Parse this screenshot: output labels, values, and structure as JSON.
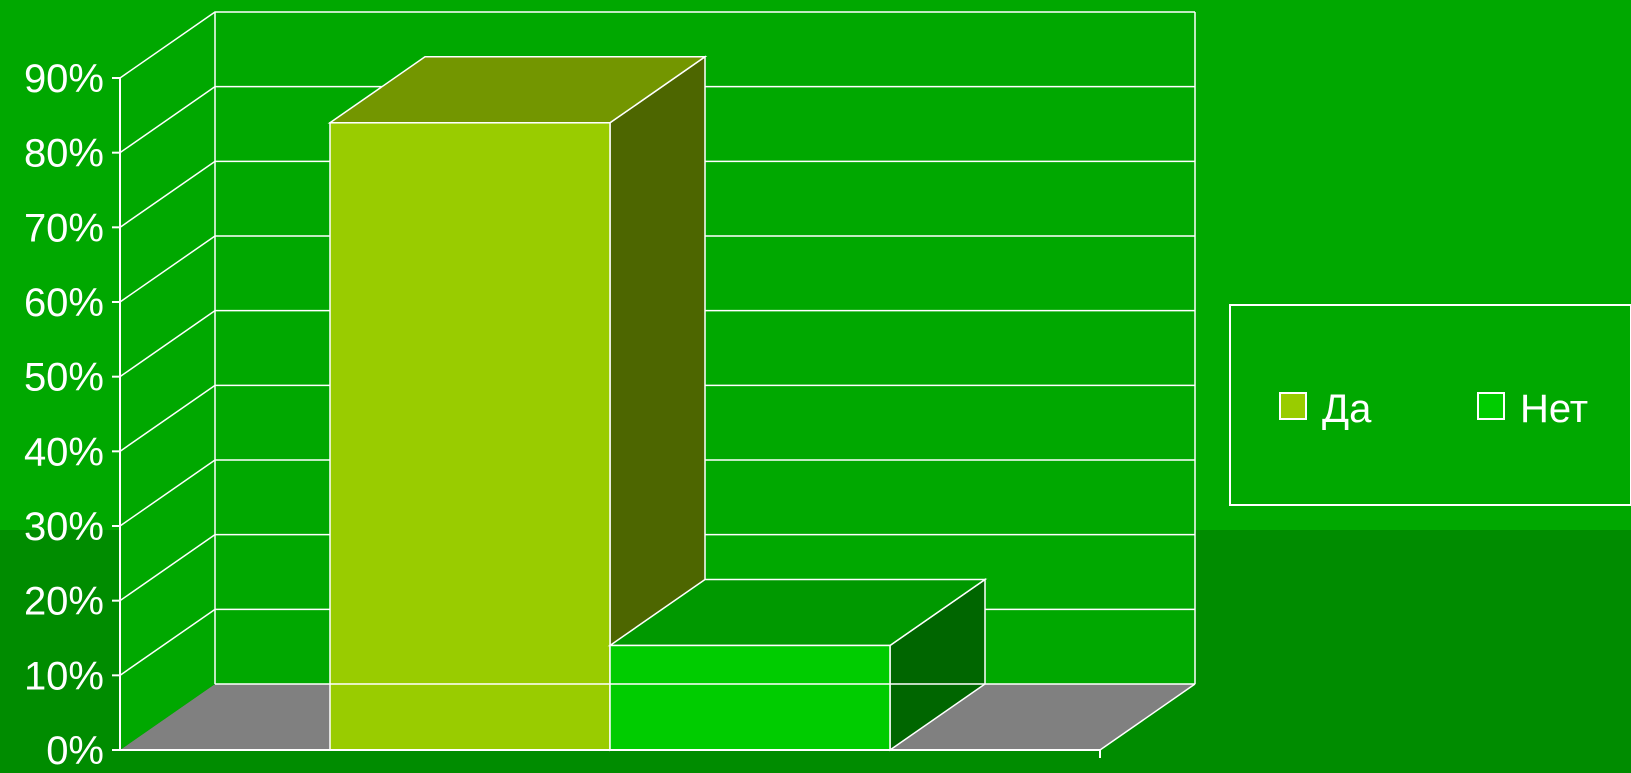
{
  "chart_data": {
    "type": "bar",
    "categories": [
      "Да",
      "Нет"
    ],
    "values": [
      84,
      14
    ],
    "ylim": [
      0,
      90
    ],
    "yticks": [
      "0%",
      "10%",
      "20%",
      "30%",
      "40%",
      "50%",
      "60%",
      "70%",
      "80%",
      "90%"
    ],
    "grid": true,
    "legend_position": "right",
    "colors": {
      "series": [
        "#99cc00",
        "#00cc00"
      ],
      "top": [
        "#739600",
        "#009900"
      ],
      "side": [
        "#4d6600",
        "#006600"
      ],
      "floor": "#808080",
      "wall": "#00a800",
      "grid": "#ffffff"
    },
    "legend": [
      {
        "label": "Да",
        "color": "#99cc00"
      },
      {
        "label": "Нет",
        "color": "#00cc00"
      }
    ]
  }
}
